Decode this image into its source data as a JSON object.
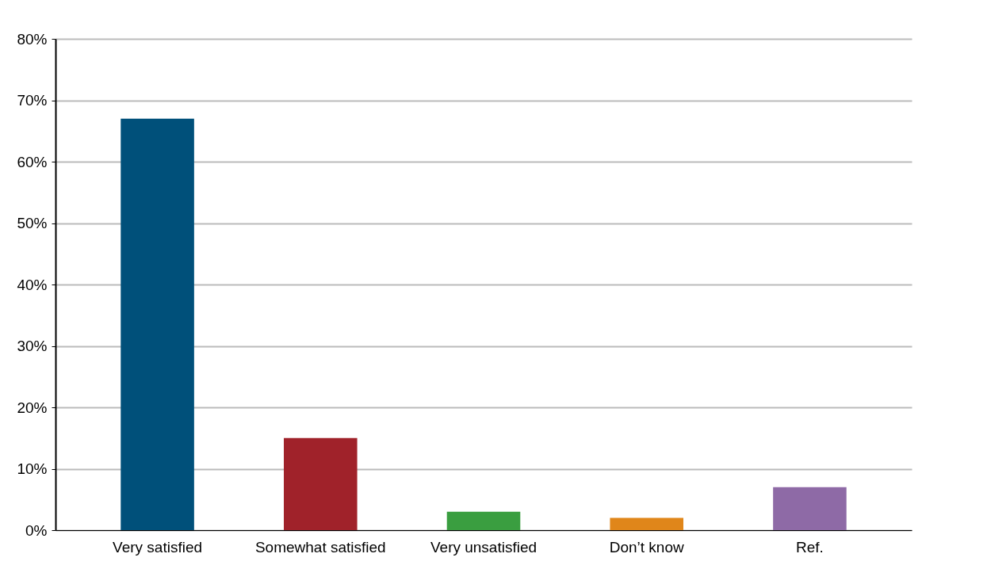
{
  "chart_data": {
    "type": "bar",
    "categories": [
      "Very satisfied",
      "Somewhat satisfied",
      "Very unsatisfied",
      "Don’t know",
      "Ref."
    ],
    "values": [
      67,
      15,
      3,
      2,
      7
    ],
    "colors": [
      "#00507a",
      "#a0222a",
      "#3a9e40",
      "#e0861a",
      "#8e6aa6"
    ],
    "ylim": [
      0,
      80
    ],
    "yticks": [
      {
        "value": 0,
        "label": "0%"
      },
      {
        "value": 10,
        "label": "10%"
      },
      {
        "value": 20,
        "label": "20%"
      },
      {
        "value": 30,
        "label": "30%"
      },
      {
        "value": 40,
        "label": "40%"
      },
      {
        "value": 50,
        "label": "50%"
      },
      {
        "value": 60,
        "label": "60%"
      },
      {
        "value": 70,
        "label": "70%"
      },
      {
        "value": 80,
        "label": "80%"
      }
    ],
    "grid": "y"
  }
}
